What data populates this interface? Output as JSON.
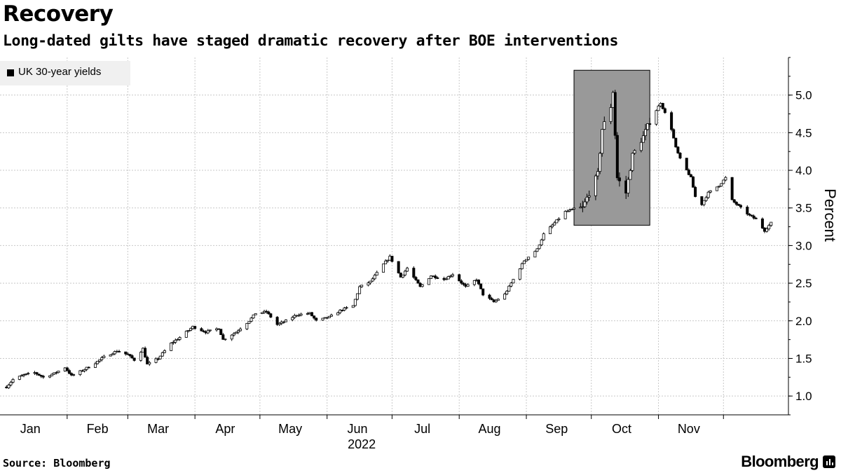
{
  "title": "Recovery",
  "subtitle": "Long-dated gilts have staged dramatic recovery after BOE interventions",
  "source": "Source: Bloomberg",
  "brand": "Bloomberg",
  "chart_data": {
    "type": "candlestick",
    "series": [
      {
        "name": "UK 30-year yields",
        "color": "#000000"
      }
    ],
    "ylabel": "Percent",
    "ylim": [
      0.75,
      5.5
    ],
    "yticks": [
      "1.0",
      "1.5",
      "2.0",
      "2.5",
      "3.0",
      "3.5",
      "4.0",
      "4.5",
      "5.0"
    ],
    "ytick_values": [
      1.0,
      1.5,
      2.0,
      2.5,
      3.0,
      3.5,
      4.0,
      4.5,
      5.0
    ],
    "xticks": [
      "Jan",
      "Feb",
      "Mar",
      "Apr",
      "May",
      "Jun",
      "Jul",
      "Aug",
      "Sep",
      "Oct",
      "Nov"
    ],
    "xtick_dates": [
      "2022-01-15",
      "2022-02-15",
      "2022-03-15",
      "2022-04-15",
      "2022-05-15",
      "2022-06-15",
      "2022-07-15",
      "2022-08-15",
      "2022-09-15",
      "2022-10-15",
      "2022-11-15"
    ],
    "xyear": "2022",
    "grid": true,
    "legend_position": "top-left",
    "highlight": {
      "x": [
        "2022-09-23",
        "2022-10-28"
      ],
      "y": [
        3.27,
        5.33
      ],
      "color": "#999999"
    },
    "closes": [
      [
        "2022-01-04",
        1.12
      ],
      [
        "2022-01-07",
        1.22
      ],
      [
        "2022-01-12",
        1.28
      ],
      [
        "2022-01-17",
        1.31
      ],
      [
        "2022-01-21",
        1.25
      ],
      [
        "2022-01-26",
        1.3
      ],
      [
        "2022-01-31",
        1.38
      ],
      [
        "2022-02-03",
        1.27
      ],
      [
        "2022-02-08",
        1.34
      ],
      [
        "2022-02-14",
        1.44
      ],
      [
        "2022-02-18",
        1.52
      ],
      [
        "2022-02-24",
        1.6
      ],
      [
        "2022-03-01",
        1.55
      ],
      [
        "2022-03-04",
        1.48
      ],
      [
        "2022-03-08",
        1.63
      ],
      [
        "2022-03-10",
        1.42
      ],
      [
        "2022-03-15",
        1.5
      ],
      [
        "2022-03-21",
        1.7
      ],
      [
        "2022-03-25",
        1.78
      ],
      [
        "2022-03-31",
        1.92
      ],
      [
        "2022-04-06",
        1.85
      ],
      [
        "2022-04-12",
        1.9
      ],
      [
        "2022-04-14",
        1.75
      ],
      [
        "2022-04-20",
        1.85
      ],
      [
        "2022-04-26",
        2.0
      ],
      [
        "2022-04-29",
        2.1
      ],
      [
        "2022-05-04",
        2.12
      ],
      [
        "2022-05-09",
        1.95
      ],
      [
        "2022-05-13",
        2.0
      ],
      [
        "2022-05-18",
        2.08
      ],
      [
        "2022-05-24",
        2.1
      ],
      [
        "2022-05-27",
        2.0
      ],
      [
        "2022-06-02",
        2.05
      ],
      [
        "2022-06-08",
        2.15
      ],
      [
        "2022-06-13",
        2.2
      ],
      [
        "2022-06-16",
        2.45
      ],
      [
        "2022-06-21",
        2.52
      ],
      [
        "2022-06-27",
        2.75
      ],
      [
        "2022-06-30",
        2.85
      ],
      [
        "2022-07-05",
        2.58
      ],
      [
        "2022-07-08",
        2.7
      ],
      [
        "2022-07-14",
        2.45
      ],
      [
        "2022-07-19",
        2.6
      ],
      [
        "2022-07-25",
        2.55
      ],
      [
        "2022-07-29",
        2.62
      ],
      [
        "2022-08-04",
        2.45
      ],
      [
        "2022-08-09",
        2.55
      ],
      [
        "2022-08-12",
        2.35
      ],
      [
        "2022-08-17",
        2.25
      ],
      [
        "2022-08-22",
        2.35
      ],
      [
        "2022-08-26",
        2.55
      ],
      [
        "2022-08-31",
        2.8
      ],
      [
        "2022-09-06",
        2.95
      ],
      [
        "2022-09-09",
        3.15
      ],
      [
        "2022-09-14",
        3.3
      ],
      [
        "2022-09-19",
        3.45
      ],
      [
        "2022-09-23",
        3.48
      ],
      [
        "2022-09-27",
        3.5
      ],
      [
        "2022-09-30",
        3.7
      ],
      [
        "2022-10-04",
        3.95
      ],
      [
        "2022-10-06",
        4.55
      ],
      [
        "2022-10-10",
        4.85
      ],
      [
        "2022-10-11",
        5.05
      ],
      [
        "2022-10-13",
        3.9
      ],
      [
        "2022-10-17",
        3.7
      ],
      [
        "2022-10-20",
        4.2
      ],
      [
        "2022-10-25",
        4.45
      ],
      [
        "2022-10-28",
        4.65
      ],
      [
        "2022-11-02",
        4.9
      ],
      [
        "2022-11-07",
        4.55
      ],
      [
        "2022-11-09",
        4.3
      ],
      [
        "2022-11-11",
        4.15
      ],
      [
        "2022-11-16",
        3.9
      ],
      [
        "2022-11-18",
        3.65
      ],
      [
        "2022-11-21",
        3.55
      ],
      [
        "2022-11-24",
        3.7
      ],
      [
        "2022-11-29",
        3.8
      ],
      [
        "2022-12-02",
        3.9
      ],
      [
        "2022-12-05",
        3.6
      ],
      [
        "2022-12-09",
        3.5
      ],
      [
        "2022-12-13",
        3.4
      ],
      [
        "2022-12-16",
        3.35
      ],
      [
        "2022-12-20",
        3.2
      ],
      [
        "2022-12-23",
        3.3
      ]
    ]
  }
}
